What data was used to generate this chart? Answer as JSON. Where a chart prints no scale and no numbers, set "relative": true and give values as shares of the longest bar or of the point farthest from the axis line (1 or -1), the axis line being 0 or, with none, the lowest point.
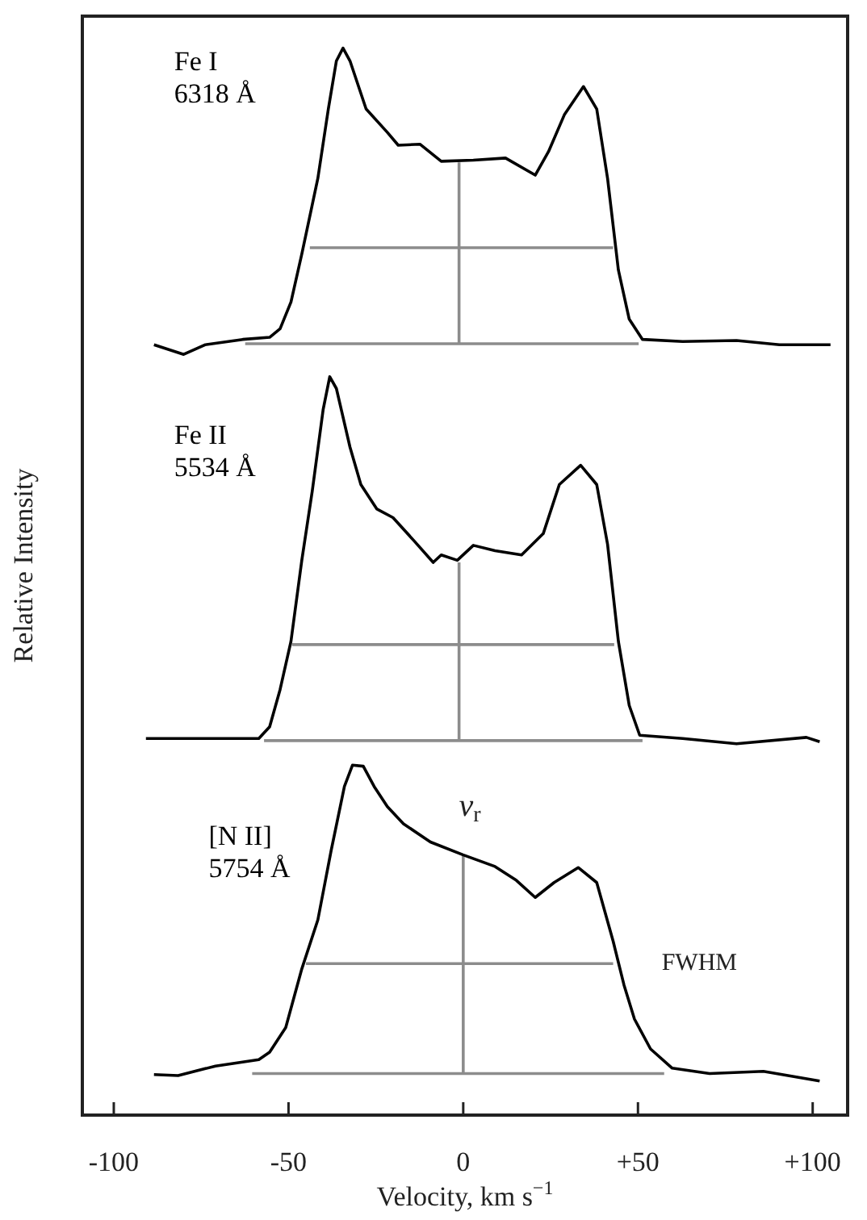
{
  "chart_data": {
    "type": "line",
    "relative": true,
    "xlabel": "Velocity, km s$^{−1}$",
    "ylabel": "Relative Intensity",
    "xlim": [
      -109,
      110
    ],
    "xticks": [
      -100,
      -50,
      0,
      {
        "value": 50,
        "label": "+50"
      },
      {
        "value": 100,
        "label": "+100"
      }
    ],
    "marker": "none",
    "legend": false,
    "annotations": [
      "v$_{r}$",
      "FWHM"
    ],
    "series": [
      {
        "name": "Fe I 6318 Å",
        "color": "#000000",
        "x": [
          -88.5,
          -80.0,
          -73.9,
          -63.1,
          -55.4,
          -52.4,
          -49.3,
          -46.2,
          -41.6,
          -38.6,
          -36.3,
          -34.4,
          -32.4,
          -27.8,
          -21.7,
          -18.6,
          -12.4,
          -6.3,
          2.9,
          12.1,
          20.6,
          24.4,
          29.0,
          34.4,
          38.2,
          41.3,
          44.4,
          47.5,
          51.3,
          62.8,
          78.2,
          90.5,
          105.1
        ],
        "values": [
          0.722,
          0.713,
          0.722,
          0.727,
          0.729,
          0.737,
          0.762,
          0.807,
          0.878,
          0.943,
          0.988,
          1,
          0.988,
          0.943,
          0.921,
          0.909,
          0.91,
          0.894,
          0.895,
          0.897,
          0.881,
          0.903,
          0.938,
          0.964,
          0.943,
          0.878,
          0.792,
          0.746,
          0.727,
          0.725,
          0.726,
          0.722,
          0.722
        ]
      },
      {
        "color": "#8c8c8c",
        "x": [
          -62.4,
          50.2
        ],
        "values": [
          0.723,
          0.723
        ]
      },
      {
        "color": "#8c8c8c",
        "x": [
          -43.9,
          42.9
        ],
        "values": [
          0.813,
          0.813
        ]
      },
      {
        "color": "#8c8c8c",
        "x": [
          -1.2,
          -1.2
        ],
        "values": [
          0.723,
          0.893
        ]
      },
      {
        "name": "Fe II 5534 Å",
        "color": "#000000",
        "x": [
          -90.8,
          -75.4,
          -58.5,
          -55.4,
          -52.4,
          -49.3,
          -46.2,
          -43.2,
          -40.1,
          -38.2,
          -36.3,
          -32.4,
          -29.3,
          -24.7,
          -20.1,
          -14.0,
          -8.6,
          -6.3,
          -1.7,
          2.9,
          9.1,
          16.7,
          22.9,
          27.5,
          33.6,
          38.2,
          41.3,
          44.4,
          47.5,
          50.5,
          62.8,
          78.2,
          98.2,
          102.0
        ],
        "values": [
          0.353,
          0.353,
          0.353,
          0.364,
          0.399,
          0.444,
          0.52,
          0.585,
          0.661,
          0.692,
          0.681,
          0.626,
          0.591,
          0.568,
          0.56,
          0.538,
          0.518,
          0.525,
          0.52,
          0.534,
          0.529,
          0.525,
          0.545,
          0.591,
          0.609,
          0.591,
          0.535,
          0.444,
          0.384,
          0.356,
          0.353,
          0.348,
          0.354,
          0.35
        ]
      },
      {
        "color": "#8c8c8c",
        "x": [
          -57.0,
          51.3
        ],
        "values": [
          0.351,
          0.351
        ]
      },
      {
        "color": "#8c8c8c",
        "x": [
          -49.0,
          43.2
        ],
        "values": [
          0.441,
          0.441
        ]
      },
      {
        "color": "#8c8c8c",
        "x": [
          -1.2,
          -1.2
        ],
        "values": [
          0.351,
          0.518
        ]
      },
      {
        "name": "[N II] 5754 Å",
        "color": "#000000",
        "x": [
          -88.5,
          -81.6,
          -70.9,
          -58.5,
          -55.4,
          -50.8,
          -46.2,
          -41.6,
          -37.8,
          -34.0,
          -31.7,
          -28.6,
          -25.5,
          -21.7,
          -17.1,
          -9.4,
          -0.1,
          9.1,
          15.2,
          20.6,
          26.0,
          32.9,
          38.2,
          42.9,
          46.0,
          49.0,
          53.6,
          59.8,
          70.5,
          85.9,
          102.0
        ],
        "values": [
          0.038,
          0.037,
          0.046,
          0.052,
          0.059,
          0.082,
          0.137,
          0.183,
          0.248,
          0.308,
          0.328,
          0.327,
          0.308,
          0.289,
          0.273,
          0.256,
          0.244,
          0.233,
          0.22,
          0.204,
          0.218,
          0.232,
          0.218,
          0.163,
          0.122,
          0.09,
          0.062,
          0.044,
          0.039,
          0.041,
          0.032
        ]
      },
      {
        "color": "#8c8c8c",
        "x": [
          -60.4,
          57.5
        ],
        "values": [
          0.039,
          0.039
        ]
      },
      {
        "color": "#8c8c8c",
        "x": [
          -45.0,
          42.9
        ],
        "values": [
          0.142,
          0.142
        ]
      },
      {
        "color": "#8c8c8c",
        "x": [
          0,
          0
        ],
        "values": [
          0.039,
          0.243
        ]
      }
    ]
  }
}
